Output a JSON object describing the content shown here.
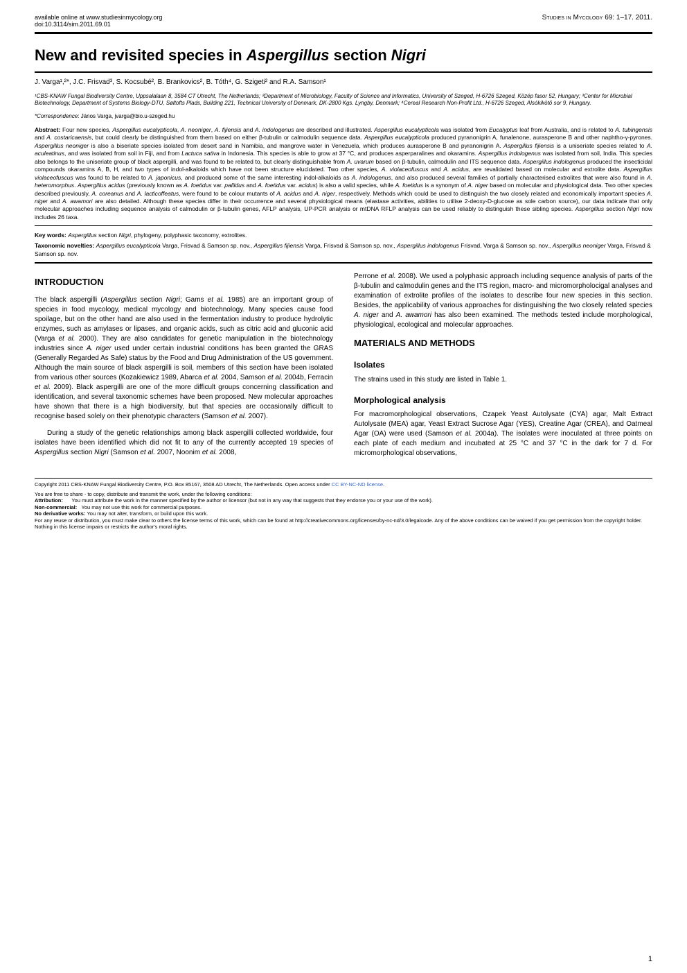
{
  "header": {
    "available": "available online at www.studiesinmycology.org",
    "doi": "doi:10.3114/sim.2011.69.01",
    "journal": "Studies in Mycology 69: 1–17. 2011."
  },
  "title": {
    "pre": "New and revisited species in ",
    "italic1": "Aspergillus",
    "mid": " section ",
    "italic2": "Nigri"
  },
  "authors": "J. Varga¹,²*, J.C. Frisvad³, S. Kocsubé², B. Brankovics², B. Tóth⁴, G. Szigeti² and R.A. Samson¹",
  "affiliations": "¹CBS-KNAW Fungal Biodiversity Centre, Uppsalalaan 8, 3584 CT Utrecht, The Netherlands; ²Department of Microbiology, Faculty of Science and Informatics, University of Szeged, H-6726 Szeged, Közép fasor 52, Hungary; ³Center for Microbial Biotechnology, Department of Systems Biology-DTU, Søltofts Plads, Building 221, Technical University of Denmark, DK-2800 Kgs. Lyngby, Denmark; ⁴Cereal Research Non-Profit Ltd., H-6726 Szeged, Alsókikötő sor 9, Hungary.",
  "correspondence": {
    "label": "*Correspondence",
    "value": ": János Varga, jvarga@bio.u-szeged.hu"
  },
  "abstract_html": "<b>Abstract:</b> Four new species, <i>Aspergillus eucalypticola</i>, <i>A. neoniger</i>, <i>A. fijiensis</i> and <i>A. indologenus</i> are described and illustrated. <i>Aspergillus eucalypticola</i> was isolated from <i>Eucalyptus</i> leaf from Australia, and is related to <i>A. tubingensis</i> and <i>A. costaricaensis</i>, but could clearly be distinguished from them based on either β-tubulin or calmodulin sequence data. <i>Aspergillus eucalypticola</i> produced pyranonigrin A, funalenone, aurasperone B and other naphtho-γ-pyrones. <i>Aspergillus neoniger</i> is also a biseriate species isolated from desert sand in Namibia, and mangrove water in Venezuela, which produces aurasperone B and pyranonigrin A. <i>Aspergillus fijiensis</i> is a uniseriate species related to <i>A. aculeatinus</i>, and was isolated from soil in Fiji, and from <i>Lactuca sativa</i> in Indonesia. This species is able to grow at 37 °C, and produces asperparalines and okaramins. <i>Aspergillus indologenus</i> was isolated from soil, India. This species also belongs to the uniseriate group of black aspergilli, and was found to be related to, but clearly distinguishable from <i>A. uvarum</i> based on β-tubulin, calmodulin and ITS sequence data. <i>Aspergillus indologenus</i> produced the insecticidal compounds okaramins A, B, H, and two types of indol-alkaloids which have not been structure elucidated. Two other species, <i>A. violaceofuscus</i> and <i>A. acidus</i>, are revalidated based on molecular and extrolite data. <i>Aspergillus violaceofuscus</i> was found to be related to <i>A. japonicus</i>, and produced some of the same interesting indol-alkaloids as <i>A. indologenus</i>, and also produced several families of partially characterised extrolites that were also found in <i>A. heteromorphus</i>. <i>Aspergillus acidus</i> (previously known as <i>A. foetidus</i> var. <i>pallidus</i> and <i>A. foetidus</i> var. <i>acidus</i>) is also a valid species, while <i>A. foetidus</i> is a synonym of <i>A. niger</i> based on molecular and physiological data. Two other species described previously, <i>A. coreanus</i> and <i>A. lacticoffeatus</i>, were found to be colour mutants of <i>A. acidus</i> and <i>A. niger</i>, respectively. Methods which could be used to distinguish the two closely related and economically important species <i>A. niger</i> and <i>A. awamori</i> are also detailed. Although these species differ in their occurrence and several physiological means (elastase activities, abilities to utilise 2-deoxy-D-glucose as sole carbon source), our data indicate that only molecular approaches including sequence analysis of calmodulin or β-tubulin genes, AFLP analysis, UP-PCR analysis or mtDNA RFLP analysis can be used reliably to distinguish these sibling species. <i>Aspergillus</i> section <i>Nigri</i> now includes 26 taxa.",
  "keywords_html": "<b>Key words:</b> <i>Aspergillus</i> section <i>Nigri</i>, phylogeny, polyphasic taxonomy, extrolites.",
  "novelties_html": "<b>Taxonomic novelties:</b> <i>Aspergillus eucalypticola</i> Varga, Frisvad & Samson sp. nov., <i>Aspergillus fijiensis</i> Varga, Frisvad & Samson sp. nov., <i>Aspergillus indologenus</i> Frisvad, Varga & Samson sp. nov., <i>Aspergillus neoniger</i> Varga, Frisvad & Samson sp. nov.",
  "intro": {
    "heading": "INTRODUCTION",
    "p1_html": "The black aspergilli (<i>Aspergillus</i> section <i>Nigri</i>; Gams <i>et al.</i> 1985) are an important group of species in food mycology, medical mycology and biotechnology. Many species cause food spoilage, but on the other hand are also used in the fermentation industry to produce hydrolytic enzymes, such as amylases or lipases, and organic acids, such as citric acid and gluconic acid (Varga <i>et al.</i> 2000). They are also candidates for genetic manipulation in the biotechnology industries since <i>A. niger</i> used under certain industrial conditions has been granted the GRAS (Generally Regarded As Safe) status by the Food and Drug Administration of the US government. Although the main source of black aspergilli is soil, members of this section have been isolated from various other sources (Kozakiewicz 1989, Abarca <i>et al.</i> 2004, Samson <i>et al.</i> 2004b, Ferracin <i>et al.</i> 2009). Black aspergilli are one of the more difficult groups concerning classification and identification, and several taxonomic schemes have been proposed. New molecular approaches have shown that there is a high biodiversity, but that species are occasionally difficult to recognise based solely on their phenotypic characters (Samson <i>et al.</i> 2007).",
    "p2_html": "During a study of the genetic relationships among black aspergilli collected worldwide, four isolates have been identified which did not fit to any of the currently accepted 19 species of <i>Aspergillus</i> section <i>Nigri</i> (Samson <i>et al.</i> 2007, Noonim <i>et al.</i> 2008,",
    "p3_html": "Perrone <i>et al.</i> 2008). We used a polyphasic approach including sequence analysis of parts of the β-tubulin and calmodulin genes and the ITS region, macro- and micromorpholocigal analyses and examination of extrolite profiles of the isolates to describe four new species in this section. Besides, the applicability of various approaches for distinguishing the two closely related species <i>A. niger</i> and <i>A. awamori</i> has also been examined. The methods tested include morphological, physiological, ecological and molecular approaches."
  },
  "mm": {
    "heading": "MATERIALS AND METHODS",
    "isolates_head": "Isolates",
    "isolates_text": "The strains used in this study are listed in Table 1.",
    "morph_head": "Morphological analysis",
    "morph_text_html": "For macromorphological observations, Czapek Yeast Autolysate (CYA) agar, Malt Extract Autolysate (MEA) agar, Yeast Extract Sucrose Agar (YES), Creatine Agar (CREA), and Oatmeal Agar (OA) were used (Samson <i>et al.</i> 2004a). The isolates were inoculated at three points on each plate of each medium and incubated at 25 °C and 37 °C in the dark for 7 d. For micromorphological observations,"
  },
  "copyright": {
    "line1_pre": "Copyright 2011 CBS-KNAW Fungal Biodiversity Centre, P.O. Box 85167, 3508 AD Utrecht, The Netherlands. Open access under ",
    "link": "CC BY-NC-ND license",
    "share": "You are free to share - to copy, distribute and transmit the work, under the following conditions:",
    "attrib_label": "Attribution:",
    "attrib_text": "You must attribute the work in the manner specified by the author or licensor (but not in any way that suggests that they endorse you or your use of the work).",
    "nc_label": "Non-commercial:",
    "nc_text": "You may not use this work for commercial purposes.",
    "nd_label": "No derivative works:",
    "nd_text": "You may not alter, transform, or build upon this work.",
    "reuse": "For any reuse or distribution, you must make clear to others the license terms of this work, which can be found at http://creativecommons.org/licenses/by-nc-nd/3.0/legalcode. Any of the above conditions can be waived if you get permission from the copyright holder. Nothing in this license impairs or restricts the author's moral rights."
  },
  "page_number": "1",
  "colors": {
    "text": "#000000",
    "background": "#ffffff",
    "link": "#3366cc"
  }
}
